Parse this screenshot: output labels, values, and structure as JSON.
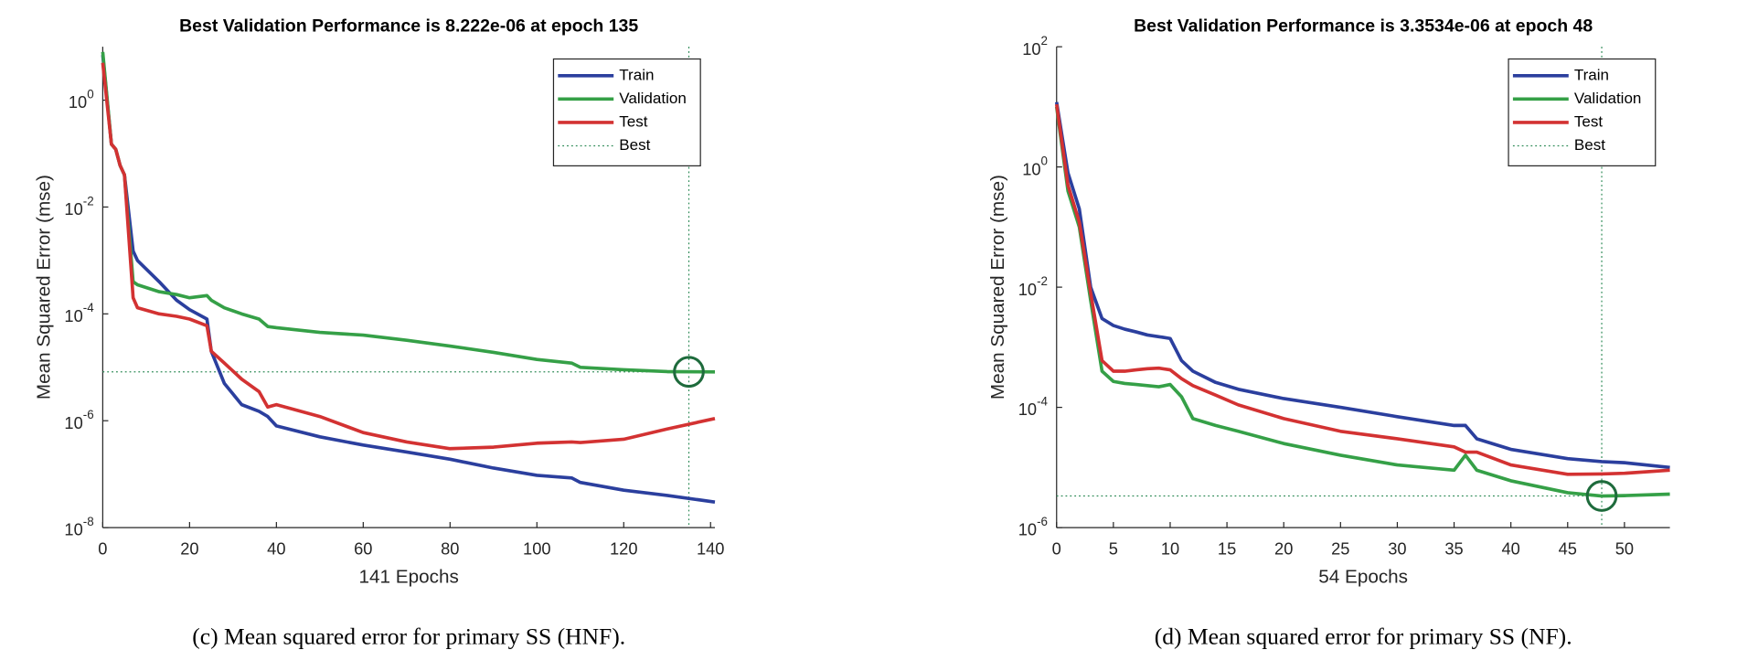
{
  "chart_data": [
    {
      "type": "line",
      "title": "Best Validation Performance is 8.222e-06 at epoch 135",
      "xlabel": "141 Epochs",
      "ylabel": "Mean Squared Error  (mse)",
      "caption": "(c) Mean squared error for primary SS (HNF).",
      "log_y": true,
      "legend": "northeast",
      "xlim": [
        0,
        141
      ],
      "xticks": [
        0,
        20,
        40,
        60,
        80,
        100,
        120,
        140
      ],
      "ylim": [
        1e-08,
        10
      ],
      "yticks": [
        {
          "value": 1e-08,
          "label": "10",
          "exponent": "-8"
        },
        {
          "value": 1e-06,
          "label": "10",
          "exponent": "-6"
        },
        {
          "value": 0.0001,
          "label": "10",
          "exponent": "-4"
        },
        {
          "value": 0.01,
          "label": "10",
          "exponent": "-2"
        },
        {
          "value": 1,
          "label": "10",
          "exponent": "0"
        }
      ],
      "x": [
        0,
        2,
        3,
        4,
        5,
        7,
        8,
        13,
        17,
        20,
        24,
        25,
        28,
        32,
        36,
        38,
        40,
        50,
        60,
        70,
        80,
        90,
        100,
        108,
        110,
        120,
        130,
        141
      ],
      "series": [
        {
          "name": "Train",
          "color": "#2b3f9e",
          "values": [
            7,
            0.15,
            0.12,
            0.06,
            0.04,
            0.0015,
            0.001,
            0.0004,
            0.00018,
            0.00012,
            8e-05,
            2e-05,
            5e-06,
            2e-06,
            1.5e-06,
            1.2e-06,
            8e-07,
            5e-07,
            3.5e-07,
            2.6e-07,
            1.9e-07,
            1.3e-07,
            9.5e-08,
            8.5e-08,
            7e-08,
            5e-08,
            4e-08,
            3e-08
          ]
        },
        {
          "name": "Validation",
          "color": "#35a047",
          "values": [
            8,
            0.15,
            0.12,
            0.06,
            0.04,
            0.0004,
            0.00035,
            0.00026,
            0.00023,
            0.0002,
            0.00022,
            0.00018,
            0.00013,
            0.0001,
            8e-05,
            5.8e-05,
            5.5e-05,
            4.5e-05,
            4e-05,
            3.2e-05,
            2.5e-05,
            1.9e-05,
            1.4e-05,
            1.2e-05,
            1e-05,
            9e-06,
            8.3e-06,
            8.2e-06
          ]
        },
        {
          "name": "Test",
          "color": "#d33232",
          "values": [
            5,
            0.15,
            0.12,
            0.06,
            0.04,
            0.0002,
            0.00013,
            0.0001,
            9e-05,
            8e-05,
            6e-05,
            2e-05,
            1.2e-05,
            6e-06,
            3.5e-06,
            1.8e-06,
            2e-06,
            1.2e-06,
            6e-07,
            4e-07,
            3e-07,
            3.2e-07,
            3.8e-07,
            4e-07,
            3.9e-07,
            4.5e-07,
            7e-07,
            1.1e-06
          ]
        }
      ],
      "best": {
        "name": "Best",
        "epoch": 135,
        "value": 8.222e-06,
        "color": "#2e8b57",
        "circle_color": "#1e6b3c"
      }
    },
    {
      "type": "line",
      "title": "Best Validation Performance is 3.3534e-06 at epoch 48",
      "xlabel": "54 Epochs",
      "ylabel": "Mean Squared Error  (mse)",
      "caption": "(d) Mean squared error for primary SS (NF).",
      "log_y": true,
      "legend": "northeast",
      "xlim": [
        0,
        54
      ],
      "xticks": [
        0,
        5,
        10,
        15,
        20,
        25,
        30,
        35,
        40,
        45,
        50
      ],
      "ylim": [
        1e-06,
        100
      ],
      "yticks": [
        {
          "value": 1e-06,
          "label": "10",
          "exponent": "-6"
        },
        {
          "value": 0.0001,
          "label": "10",
          "exponent": "-4"
        },
        {
          "value": 0.01,
          "label": "10",
          "exponent": "-2"
        },
        {
          "value": 1,
          "label": "10",
          "exponent": "0"
        },
        {
          "value": 100,
          "label": "10",
          "exponent": "2"
        }
      ],
      "x": [
        0,
        1,
        2,
        3,
        4,
        5,
        6,
        7,
        8,
        9,
        10,
        11,
        12,
        14,
        16,
        20,
        25,
        30,
        35,
        36,
        37,
        40,
        45,
        48,
        50,
        54
      ],
      "series": [
        {
          "name": "Train",
          "color": "#2b3f9e",
          "values": [
            12,
            0.8,
            0.2,
            0.01,
            0.003,
            0.0023,
            0.002,
            0.0018,
            0.0016,
            0.0015,
            0.0014,
            0.0006,
            0.0004,
            0.00026,
            0.0002,
            0.00014,
            0.0001,
            7e-05,
            5e-05,
            5e-05,
            3e-05,
            2e-05,
            1.4e-05,
            1.25e-05,
            1.2e-05,
            1e-05
          ]
        },
        {
          "name": "Validation",
          "color": "#35a047",
          "values": [
            10,
            0.4,
            0.1,
            0.006,
            0.0004,
            0.00027,
            0.00025,
            0.00024,
            0.00023,
            0.00022,
            0.00024,
            0.00015,
            6.5e-05,
            5e-05,
            4e-05,
            2.5e-05,
            1.6e-05,
            1.1e-05,
            9e-06,
            1.6e-05,
            9e-06,
            6e-06,
            3.8e-06,
            3.35e-06,
            3.4e-06,
            3.6e-06
          ]
        },
        {
          "name": "Test",
          "color": "#d33232",
          "values": [
            11,
            0.5,
            0.12,
            0.008,
            0.0006,
            0.0004,
            0.0004,
            0.00042,
            0.00044,
            0.00045,
            0.00042,
            0.0003,
            0.00023,
            0.00016,
            0.00011,
            6.5e-05,
            4e-05,
            3e-05,
            2.2e-05,
            1.8e-05,
            1.8e-05,
            1.1e-05,
            7.7e-06,
            7.8e-06,
            8e-06,
            9e-06
          ]
        }
      ],
      "best": {
        "name": "Best",
        "epoch": 48,
        "value": 3.3534e-06,
        "color": "#2e8b57",
        "circle_color": "#1e6b3c"
      }
    }
  ]
}
